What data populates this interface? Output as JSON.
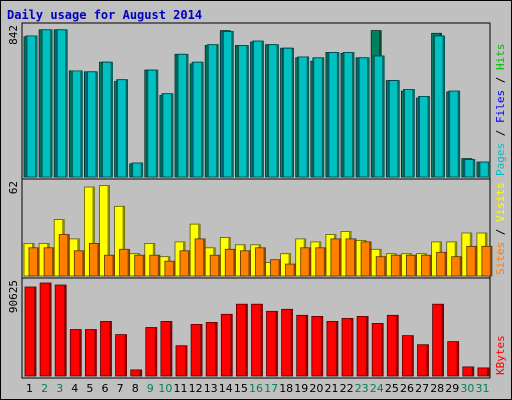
{
  "chart_data": {
    "type": "bar",
    "title": "Daily usage for August 2014",
    "days": [
      "1",
      "2",
      "3",
      "4",
      "5",
      "6",
      "7",
      "8",
      "9",
      "10",
      "11",
      "12",
      "13",
      "14",
      "15",
      "16",
      "17",
      "18",
      "19",
      "20",
      "21",
      "22",
      "23",
      "24",
      "25",
      "26",
      "27",
      "28",
      "29",
      "30",
      "31"
    ],
    "weekend_days": [
      "2",
      "3",
      "9",
      "10",
      "16",
      "17",
      "23",
      "24",
      "30",
      "31"
    ],
    "panels": [
      {
        "name": "hits-pages-files",
        "max_label": "842",
        "ymax": 850,
        "legend": [
          {
            "text": "Pages",
            "color": "#00c0c0"
          },
          {
            "text": " / ",
            "color": "#000000"
          },
          {
            "text": "Files",
            "color": "#0000ff"
          },
          {
            "text": " / ",
            "color": "#000000"
          },
          {
            "text": "Hits",
            "color": "#00c000"
          }
        ],
        "series": [
          {
            "name": "Hits",
            "color": "#00805c",
            "values": [
              800,
              840,
              840,
              605,
              600,
              655,
              545,
              75,
              610,
              465,
              700,
              645,
              750,
              835,
              750,
              770,
              755,
              735,
              680,
              660,
              710,
              705,
              680,
              835,
              550,
              490,
              450,
              820,
              485,
              105,
              85
            ]
          },
          {
            "name": "Files",
            "color": "#00bfff",
            "values": [
              805,
              840,
              840,
              605,
              600,
              655,
              555,
              80,
              610,
              475,
              700,
              655,
              755,
              830,
              750,
              775,
              755,
              735,
              685,
              680,
              710,
              710,
              680,
              690,
              550,
              500,
              460,
              805,
              490,
              100,
              85
            ]
          },
          {
            "name": "Pages",
            "color": "#00c0c0",
            "values": [
              805,
              840,
              840,
              605,
              600,
              655,
              555,
              80,
              610,
              475,
              700,
              655,
              755,
              830,
              750,
              775,
              755,
              735,
              685,
              680,
              710,
              710,
              680,
              690,
              550,
              500,
              460,
              805,
              490,
              100,
              85
            ]
          }
        ]
      },
      {
        "name": "visits-sites",
        "max_label": "62",
        "ymax": 62,
        "legend": [
          {
            "text": "Sites",
            "color": "#ff8000"
          },
          {
            "text": " / ",
            "color": "#000000"
          },
          {
            "text": "Visits",
            "color": "#ffff00"
          }
        ],
        "series": [
          {
            "name": "Visits",
            "color": "#ffff00",
            "values": [
              22,
              22,
              38,
              25,
              60,
              61,
              47,
              15,
              22,
              13,
              23,
              35,
              19,
              26,
              21,
              21,
              9,
              15,
              25,
              23,
              28,
              30,
              24,
              18,
              15,
              15,
              15,
              23,
              23,
              29,
              29
            ]
          },
          {
            "name": "Sites",
            "color": "#ff8000",
            "values": [
              19,
              19,
              28,
              17,
              22,
              14,
              18,
              14,
              14,
              10,
              17,
              25,
              14,
              18,
              17,
              19,
              11,
              8,
              19,
              19,
              25,
              25,
              23,
              13,
              14,
              14,
              14,
              16,
              13,
              20,
              20
            ]
          }
        ]
      },
      {
        "name": "kbytes",
        "max_label": "90625",
        "ymax": 92000,
        "legend": [
          {
            "text": "KBytes",
            "color": "#ff0000"
          }
        ],
        "series": [
          {
            "name": "KBytes",
            "color": "#ff0000",
            "values": [
              88000,
              92000,
              90000,
              46000,
              46000,
              54000,
              41000,
              6000,
              48000,
              54000,
              30000,
              51000,
              53000,
              61000,
              71000,
              71000,
              64000,
              66000,
              60000,
              59000,
              54000,
              57000,
              59000,
              52000,
              60000,
              40000,
              31000,
              71000,
              34000,
              9000,
              8000
            ]
          }
        ]
      }
    ],
    "colors": {
      "panel_bg": "#c0c0c0",
      "weekday_label": "#000000",
      "weekend_label": "#00805c",
      "title": "#0000c0"
    }
  }
}
